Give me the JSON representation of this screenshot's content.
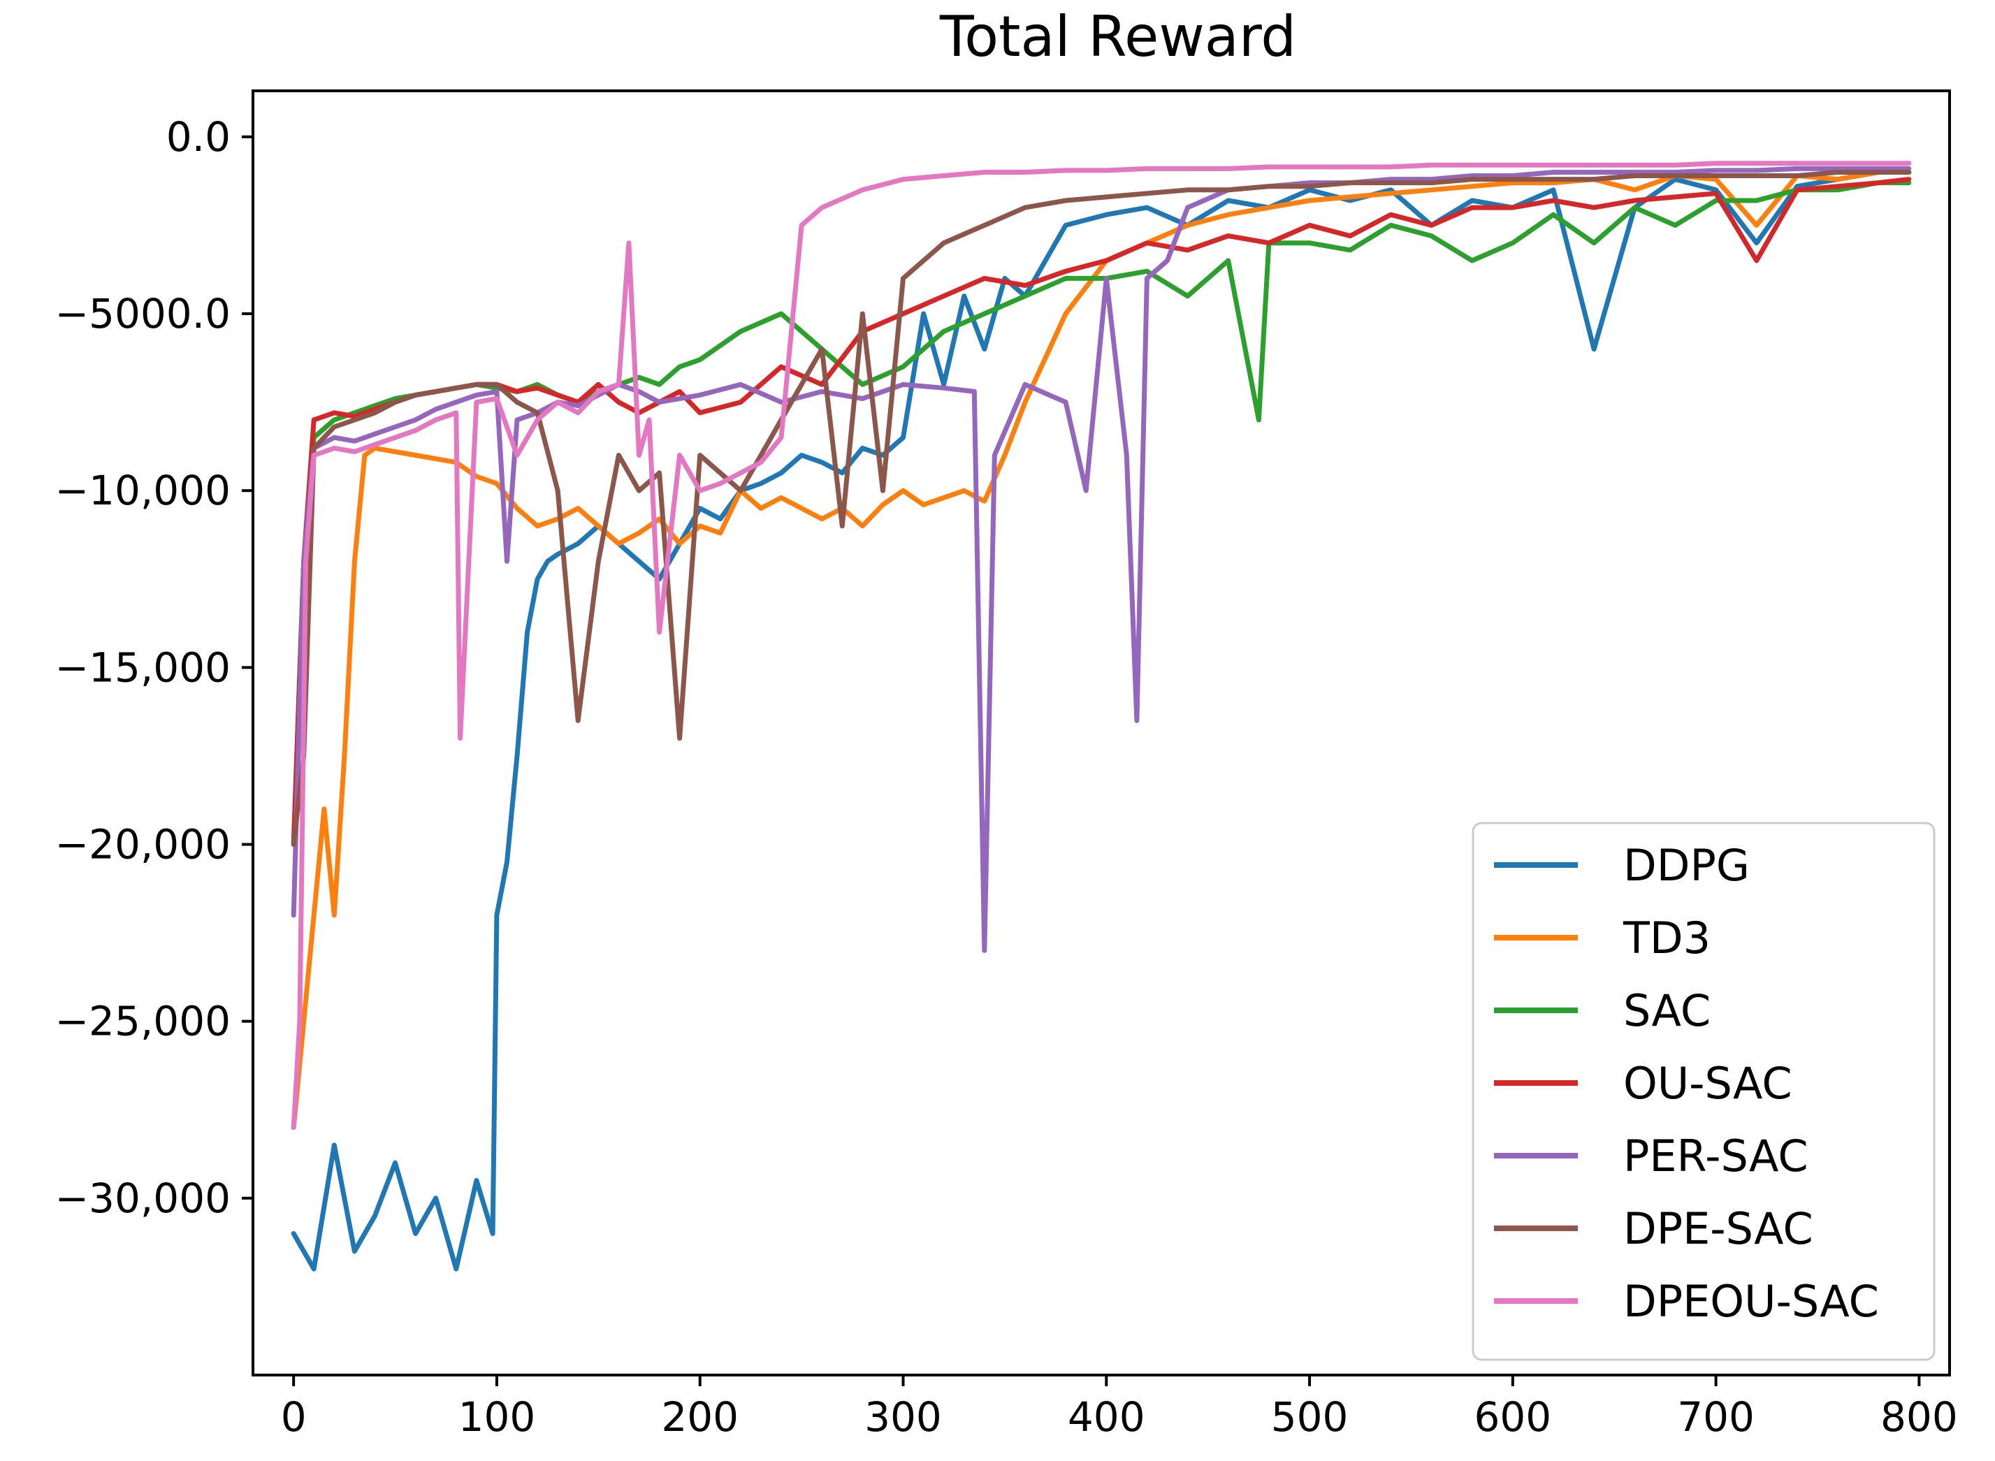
{
  "chart_data": {
    "type": "line",
    "title": "Total Reward",
    "xlabel": "",
    "ylabel": "",
    "xlim": [
      -20,
      815
    ],
    "ylim": [
      -35000,
      1300
    ],
    "xticks": [
      0,
      100,
      200,
      300,
      400,
      500,
      600,
      700,
      800
    ],
    "xtick_labels": [
      "0",
      "100",
      "200",
      "300",
      "400",
      "500",
      "600",
      "700",
      "800"
    ],
    "yticks": [
      0,
      -5000,
      -10000,
      -15000,
      -20000,
      -25000,
      -30000
    ],
    "ytick_labels": [
      "0.0",
      "−5000.0",
      "−10,000",
      "−15,000",
      "−20,000",
      "−25,000",
      "−30,000"
    ],
    "grid": false,
    "legend_position": "lower-right",
    "series": [
      {
        "name": "DDPG",
        "color": "#1f77b4",
        "x": [
          0,
          10,
          20,
          30,
          40,
          50,
          60,
          70,
          80,
          90,
          98,
          100,
          105,
          110,
          115,
          120,
          125,
          130,
          140,
          150,
          160,
          170,
          180,
          190,
          200,
          210,
          220,
          230,
          240,
          250,
          260,
          270,
          280,
          290,
          300,
          310,
          320,
          330,
          340,
          350,
          360,
          380,
          400,
          420,
          440,
          460,
          480,
          500,
          520,
          540,
          560,
          580,
          600,
          620,
          640,
          660,
          680,
          700,
          720,
          740,
          760,
          780,
          795
        ],
        "y": [
          -31000,
          -32000,
          -28500,
          -31500,
          -30500,
          -29000,
          -31000,
          -30000,
          -32000,
          -29500,
          -31000,
          -22000,
          -20500,
          -17500,
          -14000,
          -12500,
          -12000,
          -11800,
          -11500,
          -11000,
          -11500,
          -12000,
          -12500,
          -11500,
          -10500,
          -10800,
          -10000,
          -9800,
          -9500,
          -9000,
          -9200,
          -9500,
          -8800,
          -9000,
          -8500,
          -5000,
          -7000,
          -4500,
          -6000,
          -4000,
          -4500,
          -2500,
          -2200,
          -2000,
          -2500,
          -1800,
          -2000,
          -1500,
          -1800,
          -1500,
          -2500,
          -1800,
          -2000,
          -1500,
          -6000,
          -2000,
          -1200,
          -1500,
          -3000,
          -1400,
          -1200,
          -1000,
          -1000
        ]
      },
      {
        "name": "TD3",
        "color": "#ff7f0e",
        "x": [
          0,
          5,
          10,
          15,
          20,
          25,
          30,
          35,
          40,
          50,
          60,
          70,
          80,
          90,
          100,
          110,
          120,
          130,
          140,
          150,
          160,
          170,
          180,
          190,
          200,
          210,
          220,
          230,
          240,
          250,
          260,
          270,
          280,
          290,
          300,
          310,
          320,
          330,
          340,
          350,
          360,
          380,
          400,
          420,
          440,
          460,
          480,
          500,
          520,
          540,
          560,
          580,
          600,
          620,
          640,
          660,
          680,
          700,
          720,
          740,
          760,
          780,
          795
        ],
        "y": [
          -28000,
          -25000,
          -22000,
          -19000,
          -22000,
          -17500,
          -12000,
          -9000,
          -8800,
          -8900,
          -9000,
          -9100,
          -9200,
          -9600,
          -9800,
          -10500,
          -11000,
          -10800,
          -10500,
          -11000,
          -11500,
          -11200,
          -10800,
          -11500,
          -11000,
          -11200,
          -10000,
          -10500,
          -10200,
          -10500,
          -10800,
          -10500,
          -11000,
          -10400,
          -10000,
          -10400,
          -10200,
          -10000,
          -10300,
          -9000,
          -7500,
          -5000,
          -3500,
          -3000,
          -2500,
          -2200,
          -2000,
          -1800,
          -1700,
          -1600,
          -1500,
          -1400,
          -1300,
          -1300,
          -1200,
          -1500,
          -1100,
          -1200,
          -2500,
          -1100,
          -1200,
          -1000,
          -1000
        ]
      },
      {
        "name": "SAC",
        "color": "#2ca02c",
        "x": [
          0,
          5,
          10,
          20,
          30,
          40,
          50,
          60,
          70,
          80,
          90,
          100,
          110,
          120,
          130,
          140,
          150,
          160,
          170,
          180,
          190,
          200,
          220,
          240,
          260,
          280,
          300,
          320,
          340,
          360,
          380,
          400,
          420,
          440,
          460,
          475,
          480,
          500,
          520,
          540,
          560,
          580,
          600,
          620,
          640,
          660,
          680,
          700,
          720,
          740,
          760,
          780,
          795
        ],
        "y": [
          -20000,
          -12000,
          -8500,
          -8000,
          -7800,
          -7600,
          -7400,
          -7300,
          -7200,
          -7100,
          -7000,
          -7100,
          -7200,
          -7000,
          -7300,
          -7500,
          -7200,
          -7000,
          -6800,
          -7000,
          -6500,
          -6300,
          -5500,
          -5000,
          -6000,
          -7000,
          -6500,
          -5500,
          -5000,
          -4500,
          -4000,
          -4000,
          -3800,
          -4500,
          -3500,
          -8000,
          -3000,
          -3000,
          -3200,
          -2500,
          -2800,
          -3500,
          -3000,
          -2200,
          -3000,
          -2000,
          -2500,
          -1800,
          -1800,
          -1500,
          -1500,
          -1300,
          -1300
        ]
      },
      {
        "name": "OU-SAC",
        "color": "#d62728",
        "x": [
          0,
          5,
          10,
          20,
          30,
          40,
          50,
          60,
          70,
          80,
          90,
          100,
          110,
          120,
          130,
          140,
          150,
          160,
          170,
          180,
          190,
          200,
          220,
          240,
          260,
          280,
          300,
          320,
          340,
          360,
          380,
          400,
          420,
          440,
          460,
          480,
          500,
          520,
          540,
          560,
          580,
          600,
          620,
          640,
          660,
          680,
          700,
          720,
          740,
          760,
          780,
          795
        ],
        "y": [
          -20000,
          -12000,
          -8000,
          -7800,
          -7900,
          -7700,
          -7500,
          -7300,
          -7200,
          -7100,
          -7000,
          -7000,
          -7200,
          -7100,
          -7300,
          -7500,
          -7000,
          -7500,
          -7800,
          -7500,
          -7200,
          -7800,
          -7500,
          -6500,
          -7000,
          -5500,
          -5000,
          -4500,
          -4000,
          -4200,
          -3800,
          -3500,
          -3000,
          -3200,
          -2800,
          -3000,
          -2500,
          -2800,
          -2200,
          -2500,
          -2000,
          -2000,
          -1800,
          -2000,
          -1800,
          -1700,
          -1600,
          -3500,
          -1500,
          -1400,
          -1300,
          -1200
        ]
      },
      {
        "name": "PER-SAC",
        "color": "#9467bd",
        "x": [
          0,
          5,
          10,
          20,
          30,
          40,
          50,
          60,
          70,
          80,
          90,
          100,
          105,
          110,
          120,
          130,
          140,
          150,
          160,
          170,
          180,
          200,
          220,
          240,
          260,
          280,
          300,
          320,
          335,
          340,
          345,
          360,
          380,
          390,
          400,
          410,
          415,
          420,
          430,
          440,
          460,
          480,
          500,
          520,
          540,
          560,
          580,
          600,
          620,
          640,
          660,
          680,
          700,
          720,
          740,
          760,
          780,
          795
        ],
        "y": [
          -22000,
          -12000,
          -8800,
          -8500,
          -8600,
          -8400,
          -8200,
          -8000,
          -7700,
          -7500,
          -7300,
          -7200,
          -12000,
          -8000,
          -7800,
          -7500,
          -7600,
          -7300,
          -7000,
          -7200,
          -7500,
          -7300,
          -7000,
          -7500,
          -7200,
          -7400,
          -7000,
          -7100,
          -7200,
          -23000,
          -9000,
          -7000,
          -7500,
          -10000,
          -4000,
          -9000,
          -16500,
          -4000,
          -3500,
          -2000,
          -1500,
          -1400,
          -1300,
          -1300,
          -1200,
          -1200,
          -1100,
          -1100,
          -1000,
          -1000,
          -1000,
          -1000,
          -950,
          -950,
          -900,
          -900,
          -900,
          -900
        ]
      },
      {
        "name": "DPE-SAC",
        "color": "#8c564b",
        "x": [
          0,
          5,
          10,
          20,
          30,
          40,
          50,
          60,
          70,
          80,
          90,
          100,
          110,
          120,
          130,
          140,
          150,
          160,
          170,
          180,
          190,
          200,
          220,
          240,
          260,
          270,
          280,
          290,
          300,
          320,
          340,
          360,
          380,
          400,
          420,
          440,
          460,
          480,
          500,
          520,
          540,
          560,
          580,
          600,
          620,
          640,
          660,
          680,
          700,
          720,
          740,
          760,
          780,
          795
        ],
        "y": [
          -20000,
          -17500,
          -8800,
          -8200,
          -8000,
          -7800,
          -7500,
          -7300,
          -7200,
          -7100,
          -7000,
          -7000,
          -7500,
          -7800,
          -10000,
          -16500,
          -12000,
          -9000,
          -10000,
          -9500,
          -17000,
          -9000,
          -10000,
          -8000,
          -6000,
          -11000,
          -5000,
          -10000,
          -4000,
          -3000,
          -2500,
          -2000,
          -1800,
          -1700,
          -1600,
          -1500,
          -1500,
          -1400,
          -1400,
          -1300,
          -1300,
          -1300,
          -1200,
          -1200,
          -1200,
          -1200,
          -1100,
          -1100,
          -1100,
          -1100,
          -1100,
          -1000,
          -1000,
          -1000
        ]
      },
      {
        "name": "DPEOU-SAC",
        "color": "#e377c2",
        "x": [
          0,
          3,
          6,
          10,
          20,
          30,
          40,
          50,
          60,
          70,
          80,
          82,
          90,
          100,
          110,
          120,
          130,
          140,
          150,
          160,
          165,
          170,
          175,
          180,
          190,
          200,
          210,
          220,
          230,
          240,
          250,
          260,
          280,
          300,
          320,
          340,
          360,
          380,
          400,
          420,
          440,
          460,
          480,
          500,
          520,
          540,
          560,
          580,
          600,
          620,
          640,
          660,
          680,
          700,
          720,
          740,
          760,
          780,
          795
        ],
        "y": [
          -28000,
          -25000,
          -12000,
          -9000,
          -8800,
          -8900,
          -8700,
          -8500,
          -8300,
          -8000,
          -7800,
          -17000,
          -7500,
          -7400,
          -9000,
          -8000,
          -7500,
          -7800,
          -7200,
          -7000,
          -3000,
          -9000,
          -8000,
          -14000,
          -9000,
          -10000,
          -9800,
          -9500,
          -9200,
          -8500,
          -2500,
          -2000,
          -1500,
          -1200,
          -1100,
          -1000,
          -1000,
          -950,
          -950,
          -900,
          -900,
          -900,
          -850,
          -850,
          -850,
          -850,
          -800,
          -800,
          -800,
          -800,
          -800,
          -800,
          -800,
          -750,
          -750,
          -750,
          -750,
          -750,
          -750
        ]
      }
    ]
  }
}
